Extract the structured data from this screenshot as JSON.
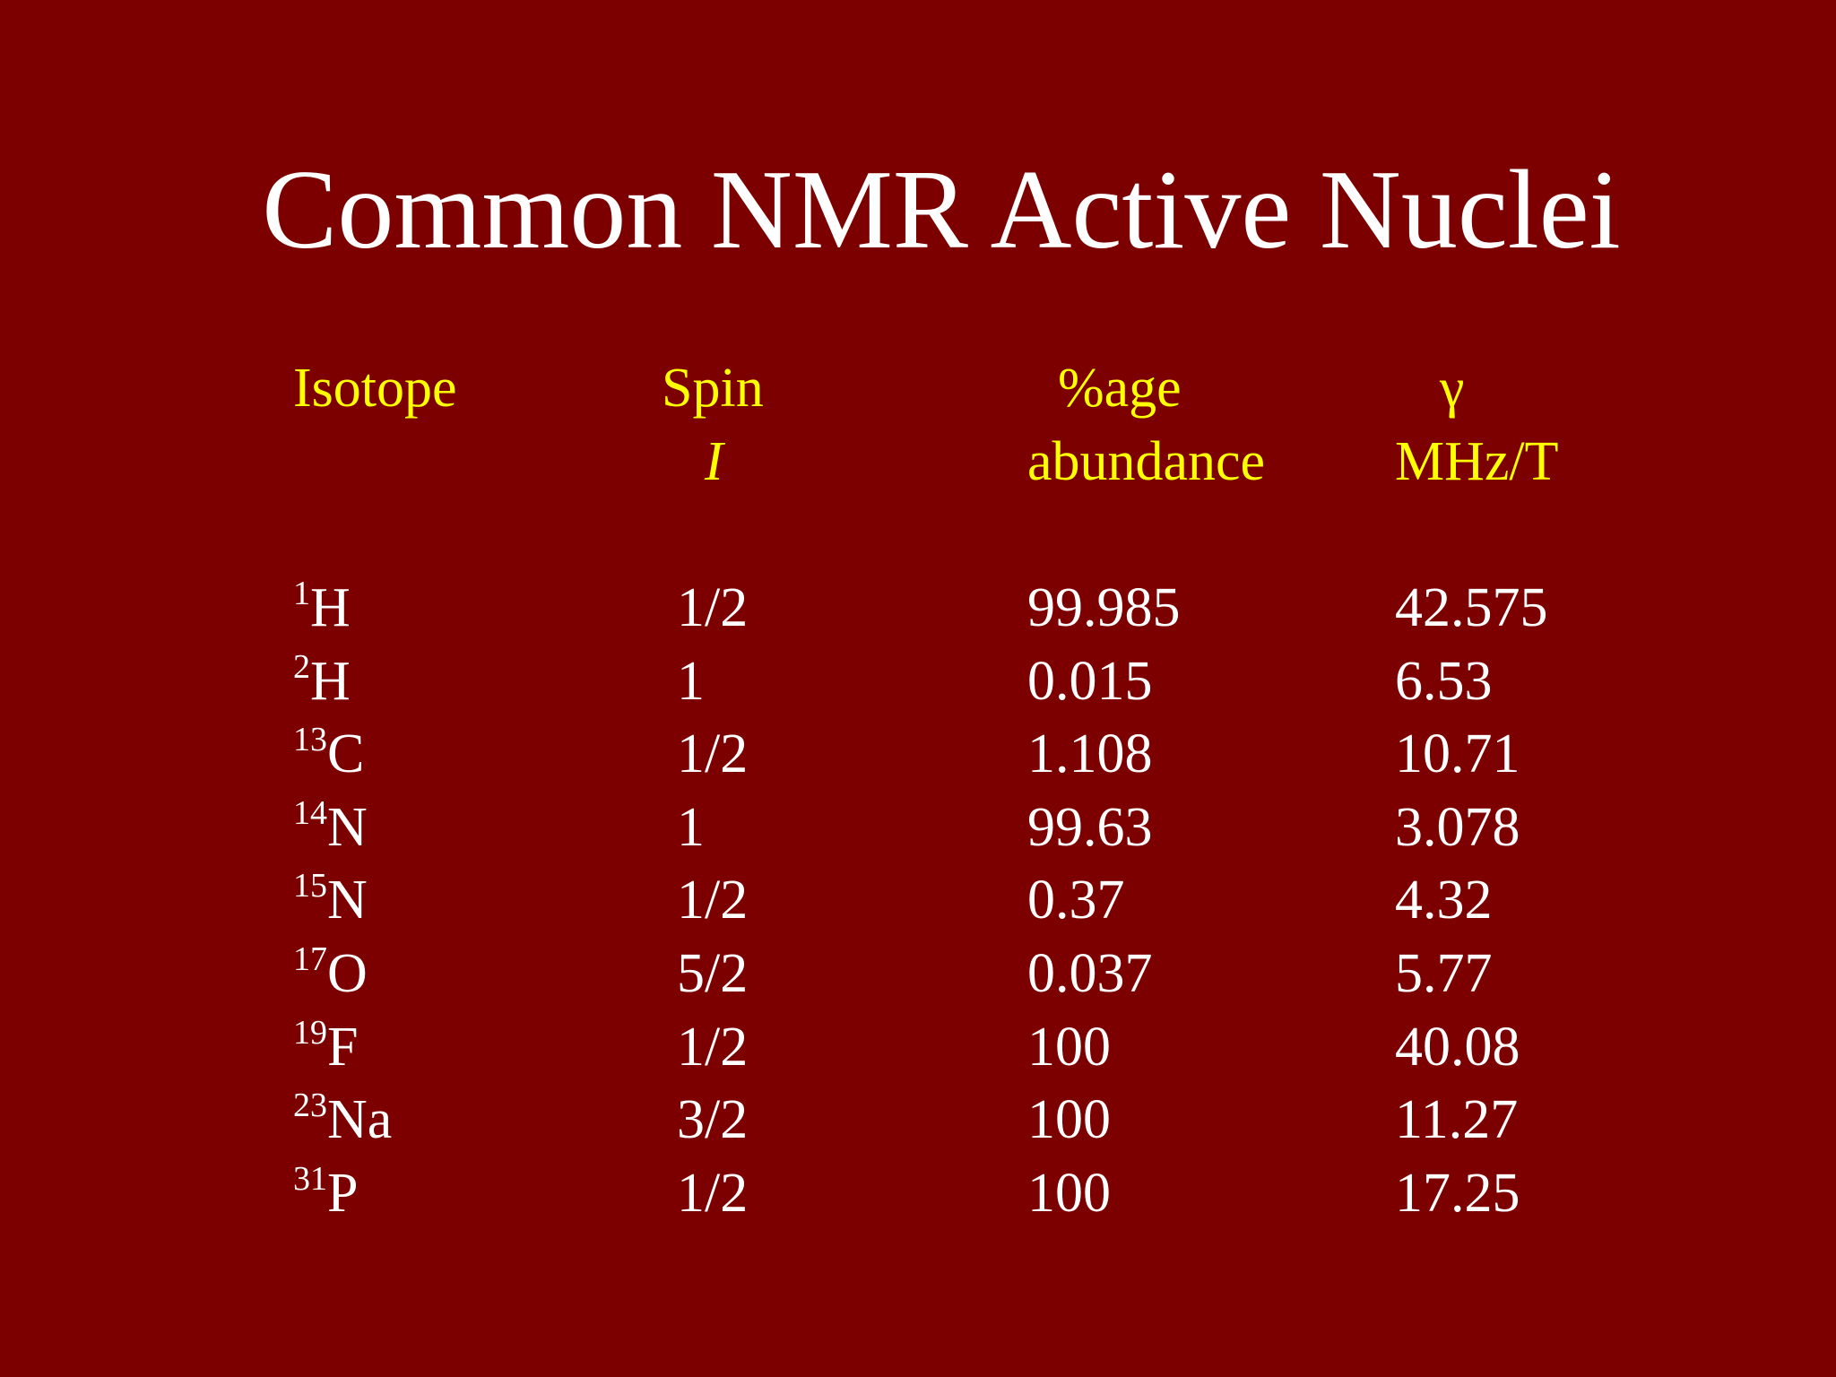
{
  "title": "Common NMR Active Nuclei",
  "headers": {
    "isotope": "Isotope",
    "spin_line1": "Spin",
    "spin_line2": "I",
    "abundance_line1": "%age",
    "abundance_line2": "abundance",
    "gamma_line1": "γ",
    "gamma_line2": "MHz/T"
  },
  "rows": [
    {
      "mass": "1",
      "symbol": "H",
      "spin": "1/2",
      "abundance": "99.985",
      "gamma": "42.575"
    },
    {
      "mass": "2",
      "symbol": "H",
      "spin": "1",
      "abundance": "0.015",
      "gamma": "6.53"
    },
    {
      "mass": "13",
      "symbol": "C",
      "spin": "1/2",
      "abundance": "1.108",
      "gamma": "10.71"
    },
    {
      "mass": "14",
      "symbol": "N",
      "spin": "1",
      "abundance": "99.63",
      "gamma": "3.078"
    },
    {
      "mass": "15",
      "symbol": "N",
      "spin": "1/2",
      "abundance": "0.37",
      "gamma": "4.32"
    },
    {
      "mass": "17",
      "symbol": "O",
      "spin": "5/2",
      "abundance": "0.037",
      "gamma": "5.77"
    },
    {
      "mass": "19",
      "symbol": "F",
      "spin": "1/2",
      "abundance": "100",
      "gamma": "40.08"
    },
    {
      "mass": "23",
      "symbol": "Na",
      "spin": "3/2",
      "abundance": "100",
      "gamma": "11.27"
    },
    {
      "mass": "31",
      "symbol": "P",
      "spin": "1/2",
      "abundance": "100",
      "gamma": "17.25"
    }
  ],
  "colors": {
    "background": "#7d0000",
    "title": "#ffffff",
    "header": "#ffff00",
    "body": "#ffffff"
  }
}
